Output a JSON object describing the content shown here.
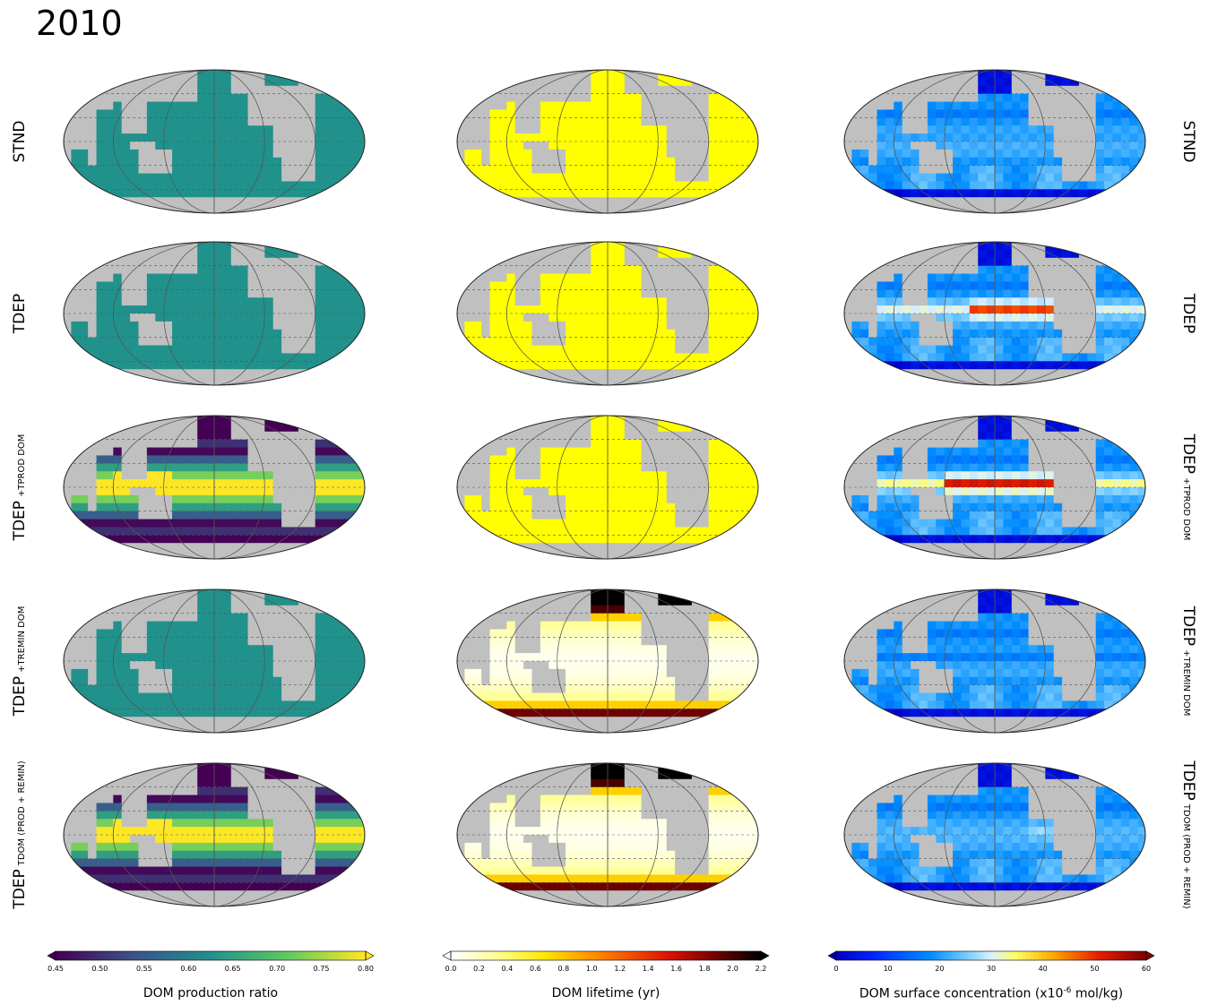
{
  "title": "2010",
  "rows": [
    {
      "left": {
        "main": "STND",
        "sub": ""
      },
      "right": {
        "main": "STND",
        "sub": ""
      }
    },
    {
      "left": {
        "main": "TDEP",
        "sub": ""
      },
      "right": {
        "main": "TDEP",
        "sub": ""
      }
    },
    {
      "left": {
        "main": "TDEP",
        "sub": "+TPROD DOM"
      },
      "right": {
        "main": "TDEP",
        "sub": "+TPROD DOM"
      }
    },
    {
      "left": {
        "main": "TDEP",
        "sub": "+TREMIN DOM"
      },
      "right": {
        "main": "TDEP",
        "sub": "+TREMIN DOM"
      }
    },
    {
      "left": {
        "main": "TDEP",
        "sub": "TDOM (PROD + REMIN)"
      },
      "right": {
        "main": "TDEP",
        "sub": "TDOM (PROD + REMIN)"
      }
    }
  ],
  "panels": [
    [
      {
        "field": "uniform",
        "color": "#21918c"
      },
      {
        "field": "uniform",
        "color": "#ffff00"
      },
      {
        "field": "conc",
        "variant": "stnd"
      }
    ],
    [
      {
        "field": "uniform",
        "color": "#21918c"
      },
      {
        "field": "uniform",
        "color": "#ffff00"
      },
      {
        "field": "conc",
        "variant": "tdep"
      }
    ],
    [
      {
        "field": "ratio"
      },
      {
        "field": "uniform",
        "color": "#ffff00"
      },
      {
        "field": "conc",
        "variant": "tprod"
      }
    ],
    [
      {
        "field": "uniform",
        "color": "#21918c"
      },
      {
        "field": "lifetime"
      },
      {
        "field": "conc",
        "variant": "tremin"
      }
    ],
    [
      {
        "field": "ratio"
      },
      {
        "field": "lifetime"
      },
      {
        "field": "conc",
        "variant": "tdom"
      }
    ]
  ],
  "colors": {
    "land": "#c0c0c0"
  },
  "colorbars": [
    {
      "label": "DOM production ratio",
      "cmap": "viridis",
      "ticks": [
        "0.45",
        "0.50",
        "0.55",
        "0.60",
        "0.65",
        "0.70",
        "0.75",
        "0.80"
      ],
      "min": 0.45,
      "max": 0.8,
      "extend_left": "#440154",
      "extend_right": "#fde725"
    },
    {
      "label": "DOM lifetime (yr)",
      "cmap": "hot_r",
      "ticks": [
        "0.0",
        "0.2",
        "0.4",
        "0.6",
        "0.8",
        "1.0",
        "1.2",
        "1.4",
        "1.6",
        "1.8",
        "2.0",
        "2.2"
      ],
      "min": 0.0,
      "max": 2.2,
      "extend_left": "#ffffff",
      "extend_right": "#000000"
    },
    {
      "label_prefix": "DOM surface concentration (x10",
      "label_sup": "-6",
      "label_suffix": " mol/kg)",
      "cmap": "jet",
      "ticks": [
        "0",
        "10",
        "20",
        "30",
        "40",
        "50",
        "60"
      ],
      "min": 0,
      "max": 60,
      "extend_left": "#0000aa",
      "extend_right": "#800000"
    }
  ]
}
